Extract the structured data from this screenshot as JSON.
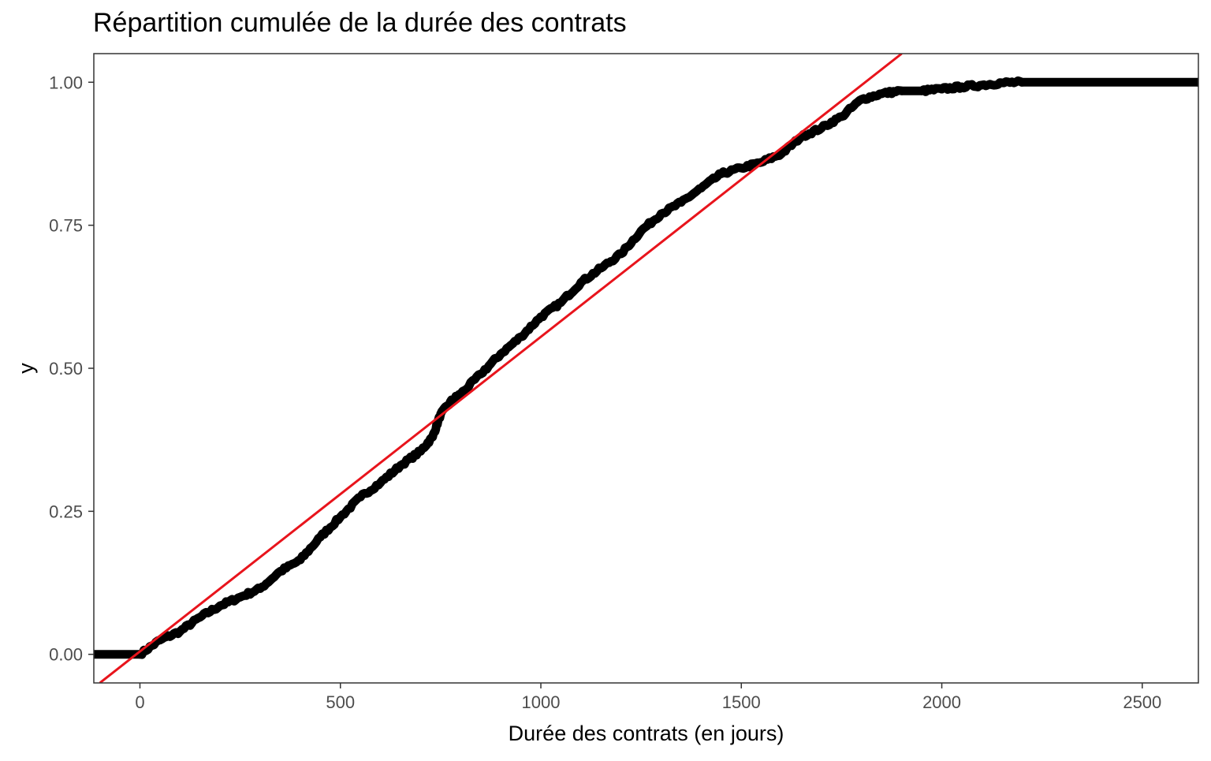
{
  "chart_data": {
    "type": "line",
    "title": "Répartition cumulée de la durée des contrats",
    "xlabel": "Durée des contrats (en jours)",
    "ylabel": "y",
    "xlim": [
      -115,
      2640
    ],
    "ylim": [
      -0.05,
      1.05
    ],
    "x_ticks": [
      0,
      500,
      1000,
      1500,
      2000,
      2500
    ],
    "x_tick_labels": [
      "0",
      "500",
      "1000",
      "1500",
      "2000",
      "2500"
    ],
    "y_ticks": [
      0,
      0.25,
      0.5,
      0.75,
      1.0
    ],
    "y_tick_labels": [
      "0.00",
      "0.25",
      "0.50",
      "0.75",
      "1.00"
    ],
    "grid": false,
    "legend": "none",
    "series": [
      {
        "kind": "empirical_cdf",
        "color": "#000000",
        "x": [
          -115,
          0,
          50,
          100,
          150,
          200,
          250,
          300,
          350,
          400,
          450,
          500,
          550,
          600,
          650,
          700,
          730,
          750,
          780,
          800,
          850,
          900,
          950,
          1000,
          1050,
          1100,
          1150,
          1200,
          1250,
          1300,
          1350,
          1400,
          1450,
          1500,
          1550,
          1600,
          1650,
          1700,
          1750,
          1800,
          1850,
          1900,
          1950,
          2000,
          2050,
          2100,
          2150,
          2200,
          2640
        ],
        "y": [
          0.0,
          0.0,
          0.025,
          0.04,
          0.065,
          0.085,
          0.1,
          0.115,
          0.145,
          0.165,
          0.205,
          0.24,
          0.275,
          0.3,
          0.33,
          0.355,
          0.38,
          0.42,
          0.445,
          0.455,
          0.49,
          0.525,
          0.555,
          0.59,
          0.615,
          0.65,
          0.675,
          0.7,
          0.74,
          0.77,
          0.79,
          0.815,
          0.84,
          0.85,
          0.86,
          0.875,
          0.905,
          0.92,
          0.94,
          0.97,
          0.98,
          0.985,
          0.985,
          0.988,
          0.992,
          0.995,
          0.999,
          1.0,
          1.0
        ]
      },
      {
        "kind": "reference_line",
        "color": "#e8141c",
        "x": [
          -100,
          1900
        ],
        "y": [
          -0.05,
          1.05
        ]
      }
    ]
  }
}
